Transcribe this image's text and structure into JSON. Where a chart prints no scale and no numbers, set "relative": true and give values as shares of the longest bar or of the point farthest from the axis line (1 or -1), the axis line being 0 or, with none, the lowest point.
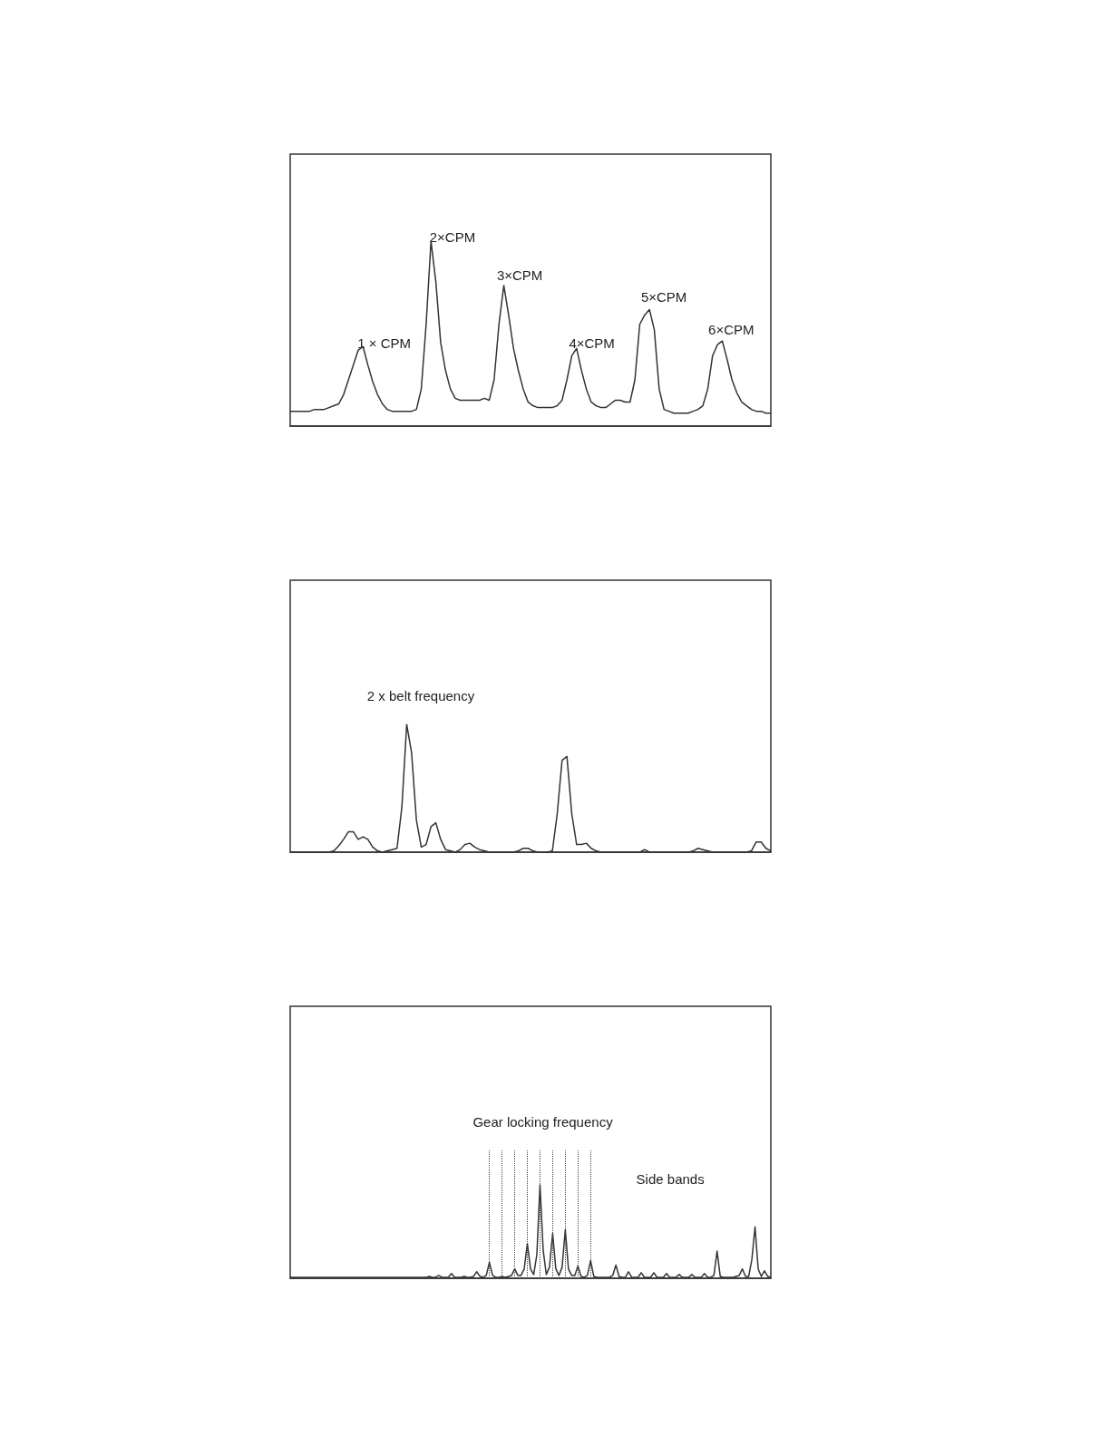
{
  "chart_data": [
    {
      "type": "line",
      "relative": true,
      "categories": [
        null,
        null,
        null,
        null,
        null,
        null,
        null,
        null,
        null,
        null,
        null,
        null,
        null,
        null,
        null,
        null,
        null,
        null,
        null,
        null,
        null,
        null,
        null,
        null,
        null,
        null,
        null,
        null,
        null,
        null,
        null,
        null,
        null,
        null,
        null,
        null,
        null,
        null,
        null,
        null,
        null,
        null,
        null,
        null,
        null,
        null,
        null,
        null,
        null,
        null,
        null,
        null,
        null,
        null,
        null,
        null,
        null,
        null,
        null,
        null,
        null,
        null,
        null,
        null,
        null,
        null,
        null,
        null,
        null,
        null,
        null,
        null,
        null,
        null,
        null,
        null,
        null,
        null,
        null,
        null,
        null,
        null,
        null,
        null,
        null,
        null,
        null,
        null,
        null,
        null,
        null,
        null,
        null,
        null,
        null,
        null,
        null,
        null,
        null,
        null
      ],
      "series": [
        {
          "color": "#333333",
          "values": [
            0.08,
            0.08,
            0.08,
            0.08,
            0.08,
            0.09,
            0.09,
            0.09,
            0.1,
            0.11,
            0.12,
            0.17,
            0.25,
            0.33,
            0.41,
            0.43,
            0.33,
            0.24,
            0.17,
            0.12,
            0.09,
            0.08,
            0.08,
            0.08,
            0.08,
            0.08,
            0.09,
            0.2,
            0.55,
            1,
            0.78,
            0.45,
            0.3,
            0.2,
            0.15,
            0.14,
            0.14,
            0.14,
            0.14,
            0.14,
            0.15,
            0.14,
            0.25,
            0.55,
            0.76,
            0.6,
            0.42,
            0.3,
            0.2,
            0.13,
            0.11,
            0.1,
            0.1,
            0.1,
            0.1,
            0.11,
            0.14,
            0.25,
            0.38,
            0.42,
            0.3,
            0.2,
            0.13,
            0.11,
            0.1,
            0.1,
            0.12,
            0.14,
            0.14,
            0.13,
            0.13,
            0.25,
            0.55,
            0.6,
            0.63,
            0.52,
            0.2,
            0.09,
            0.08,
            0.07,
            0.07,
            0.07,
            0.07,
            0.08,
            0.09,
            0.11,
            0.2,
            0.38,
            0.44,
            0.46,
            0.36,
            0.25,
            0.18,
            0.13,
            0.11,
            0.09,
            0.08,
            0.08,
            0.07,
            0.07
          ]
        }
      ],
      "annotations": [
        "1 × CPM",
        "2×CPM",
        "3×CPM",
        "4×CPM",
        "5×CPM",
        "6×CPM"
      ]
    },
    {
      "type": "line",
      "relative": true,
      "categories": [
        null,
        null,
        null,
        null,
        null,
        null,
        null,
        null,
        null,
        null,
        null,
        null,
        null,
        null,
        null,
        null,
        null,
        null,
        null,
        null,
        null,
        null,
        null,
        null,
        null,
        null,
        null,
        null,
        null,
        null,
        null,
        null,
        null,
        null,
        null,
        null,
        null,
        null,
        null,
        null,
        null,
        null,
        null,
        null,
        null,
        null,
        null,
        null,
        null,
        null,
        null,
        null,
        null,
        null,
        null,
        null,
        null,
        null,
        null,
        null,
        null,
        null,
        null,
        null,
        null,
        null,
        null,
        null,
        null,
        null,
        null,
        null,
        null,
        null,
        null,
        null,
        null,
        null,
        null,
        null,
        null,
        null,
        null,
        null,
        null,
        null,
        null,
        null,
        null,
        null,
        null,
        null,
        null,
        null,
        null,
        null,
        null,
        null,
        null,
        null
      ],
      "series": [
        {
          "color": "#333333",
          "values": [
            0,
            0,
            0,
            0,
            0,
            0,
            0,
            0,
            0,
            0.01,
            0.05,
            0.1,
            0.16,
            0.16,
            0.1,
            0.12,
            0.1,
            0.04,
            0.01,
            0,
            0.01,
            0.02,
            0.03,
            0.35,
            1,
            0.78,
            0.25,
            0.04,
            0.06,
            0.2,
            0.23,
            0.1,
            0.02,
            0.01,
            0,
            0.02,
            0.06,
            0.07,
            0.04,
            0.02,
            0.01,
            0,
            0,
            0,
            0,
            0,
            0,
            0.01,
            0.03,
            0.03,
            0.01,
            0,
            0,
            0,
            0.01,
            0.3,
            0.72,
            0.75,
            0.3,
            0.06,
            0.06,
            0.07,
            0.03,
            0.01,
            0,
            0,
            0,
            0,
            0,
            0,
            0,
            0,
            0,
            0.02,
            0,
            0,
            0,
            0,
            0,
            0,
            0,
            0,
            0,
            0.01,
            0.03,
            0.02,
            0.01,
            0,
            0,
            0,
            0,
            0,
            0,
            0,
            0,
            0.01,
            0.08,
            0.08,
            0.03,
            0.01
          ]
        }
      ],
      "annotations": [
        "2 x belt frequency"
      ]
    },
    {
      "type": "line",
      "relative": true,
      "categories": [
        null,
        null,
        null,
        null,
        null,
        null,
        null,
        null,
        null,
        null,
        null,
        null,
        null,
        null,
        null,
        null,
        null,
        null,
        null,
        null,
        null,
        null,
        null,
        null,
        null,
        null,
        null,
        null,
        null,
        null,
        null,
        null,
        null,
        null,
        null,
        null,
        null,
        null,
        null,
        null,
        null,
        null,
        null,
        null,
        null,
        null,
        null,
        null,
        null,
        null,
        null,
        null,
        null,
        null,
        null,
        null,
        null,
        null,
        null,
        null,
        null,
        null,
        null,
        null,
        null,
        null,
        null,
        null,
        null,
        null,
        null,
        null,
        null,
        null,
        null,
        null,
        null,
        null,
        null,
        null,
        null,
        null,
        null,
        null,
        null,
        null,
        null,
        null,
        null,
        null,
        null,
        null,
        null,
        null,
        null,
        null,
        null,
        null,
        null,
        null,
        null,
        null,
        null,
        null,
        null,
        null,
        null,
        null,
        null,
        null,
        null,
        null,
        null,
        null,
        null,
        null,
        null,
        null,
        null,
        null,
        null,
        null,
        null,
        null,
        null,
        null,
        null,
        null,
        null,
        null,
        null,
        null,
        null,
        null,
        null,
        null,
        null,
        null,
        null,
        null,
        null,
        null,
        null,
        null,
        null,
        null,
        null,
        null,
        null,
        null,
        null,
        null,
        null
      ],
      "series": [
        {
          "color": "#333333",
          "values": [
            0.01,
            0.01,
            0.01,
            0.01,
            0.01,
            0.01,
            0.01,
            0.01,
            0.01,
            0.01,
            0.01,
            0.01,
            0.01,
            0.01,
            0.01,
            0.01,
            0.01,
            0.01,
            0.01,
            0.01,
            0.01,
            0.01,
            0.01,
            0.01,
            0.01,
            0.01,
            0.01,
            0.01,
            0.01,
            0.01,
            0.01,
            0.01,
            0.01,
            0.01,
            0.01,
            0.01,
            0.01,
            0.01,
            0.01,
            0.01,
            0.01,
            0.01,
            0.01,
            0.01,
            0.02,
            0.01,
            0.01,
            0.03,
            0.01,
            0.01,
            0.01,
            0.05,
            0.01,
            0.01,
            0.01,
            0.02,
            0.01,
            0.01,
            0.02,
            0.07,
            0.02,
            0.01,
            0.03,
            0.17,
            0.03,
            0.01,
            0.01,
            0.02,
            0.01,
            0.02,
            0.03,
            0.1,
            0.03,
            0.03,
            0.1,
            0.37,
            0.1,
            0.04,
            0.25,
            1,
            0.3,
            0.04,
            0.12,
            0.48,
            0.1,
            0.03,
            0.12,
            0.52,
            0.1,
            0.03,
            0.03,
            0.13,
            0.02,
            0.01,
            0.03,
            0.19,
            0.02,
            0.01,
            0.01,
            0.01,
            0.01,
            0.01,
            0.03,
            0.14,
            0.02,
            0.01,
            0.01,
            0.07,
            0.01,
            0.01,
            0.01,
            0.06,
            0.01,
            0.01,
            0.01,
            0.06,
            0.01,
            0.01,
            0.01,
            0.05,
            0.01,
            0.01,
            0.01,
            0.04,
            0.01,
            0.01,
            0.01,
            0.04,
            0.01,
            0.01,
            0.01,
            0.05,
            0.01,
            0.01,
            0.03,
            0.29,
            0.02,
            0.01,
            0.01,
            0.01,
            0.01,
            0.02,
            0.03,
            0.1,
            0.02,
            0.02,
            0.2,
            0.55,
            0.1,
            0.02,
            0.08,
            0.02,
            0.01
          ]
        }
      ],
      "annotations": [
        "Gear locking frequency",
        "Side bands"
      ]
    }
  ]
}
